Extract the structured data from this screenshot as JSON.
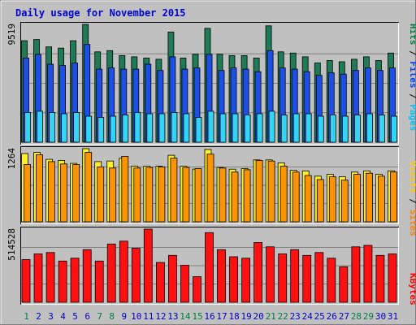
{
  "chart_data": {
    "type": "bar",
    "title": "Daily usage for November 2015",
    "categories": [
      "1",
      "2",
      "3",
      "4",
      "5",
      "6",
      "7",
      "8",
      "9",
      "10",
      "11",
      "12",
      "13",
      "14",
      "15",
      "16",
      "17",
      "18",
      "19",
      "20",
      "21",
      "22",
      "23",
      "24",
      "25",
      "26",
      "27",
      "28",
      "29",
      "30",
      "31"
    ],
    "weekend_days": [
      "1",
      "7",
      "8",
      "14",
      "15",
      "21",
      "22",
      "28",
      "29"
    ],
    "panels": [
      {
        "id": "hits-files-pages",
        "max_label": "9519",
        "ylim": [
          0,
          9519
        ],
        "series": [
          {
            "name": "Hits",
            "values": [
              8200,
              8300,
              7700,
              7600,
              8200,
              9519,
              7300,
              7400,
              7000,
              6900,
              6800,
              6700,
              8900,
              6800,
              7100,
              9200,
              7100,
              7000,
              7000,
              6800,
              9400,
              7300,
              7200,
              6900,
              6400,
              6600,
              6500,
              6700,
              6900,
              6600,
              7200
            ]
          },
          {
            "name": "Files",
            "values": [
              6800,
              7100,
              6300,
              6200,
              6400,
              7900,
              5900,
              6000,
              5900,
              5900,
              6300,
              5800,
              6900,
              5900,
              6000,
              7100,
              5800,
              6000,
              5900,
              5700,
              7400,
              6000,
              5900,
              5700,
              5400,
              5600,
              5500,
              5800,
              6000,
              5800,
              6000
            ]
          },
          {
            "name": "Pages",
            "values": [
              2400,
              2500,
              2400,
              2300,
              2400,
              2100,
              2000,
              2100,
              2200,
              2400,
              2300,
              2300,
              2400,
              2300,
              2000,
              2500,
              2300,
              2300,
              2200,
              2300,
              2500,
              2200,
              2300,
              2300,
              2100,
              2200,
              2100,
              2200,
              2300,
              2200,
              2100
            ]
          }
        ]
      },
      {
        "id": "visits-sites",
        "max_label": "1264",
        "ylim": [
          0,
          1264
        ],
        "series": [
          {
            "name": "Visits",
            "values": [
              1180,
              1200,
              1080,
              1060,
              1010,
              1264,
              1040,
              1050,
              1100,
              960,
              960,
              960,
              1150,
              960,
              910,
              1250,
              940,
              910,
              920,
              1070,
              1070,
              1020,
              890,
              880,
              790,
              820,
              780,
              860,
              880,
              820,
              880
            ]
          },
          {
            "name": "Sites",
            "values": [
              990,
              1160,
              1040,
              1000,
              990,
              1200,
              950,
              930,
              1130,
              930,
              940,
              950,
              1100,
              940,
              920,
              1170,
              930,
              860,
              900,
              1060,
              1050,
              960,
              860,
              800,
              730,
              780,
              720,
              820,
              840,
              790,
              860
            ]
          }
        ]
      },
      {
        "id": "kbytes",
        "max_label": "514528",
        "ylim": [
          0,
          514528
        ],
        "series": [
          {
            "name": "KBytes",
            "values": [
              300000,
              340000,
              350000,
              290000,
              310000,
              370000,
              290000,
              410000,
              430000,
              380000,
              514528,
              280000,
              330000,
              260000,
              180000,
              490000,
              370000,
              320000,
              310000,
              420000,
              390000,
              340000,
              370000,
              330000,
              350000,
              310000,
              250000,
              390000,
              400000,
              330000,
              340000
            ]
          }
        ]
      }
    ],
    "legends": [
      {
        "panel": "hits-files-pages",
        "parts": [
          {
            "text": "Pages",
            "color": "#00c0ff"
          },
          {
            "text": " / ",
            "color": "#000000"
          },
          {
            "text": "Files",
            "color": "#0040ff"
          },
          {
            "text": " / ",
            "color": "#000000"
          },
          {
            "text": "Hits",
            "color": "#008040"
          }
        ]
      },
      {
        "panel": "visits-sites",
        "parts": [
          {
            "text": "Sites",
            "color": "#ff8000"
          },
          {
            "text": " / ",
            "color": "#000000"
          },
          {
            "text": "Visits",
            "color": "#ffcc00"
          }
        ]
      },
      {
        "panel": "kbytes",
        "parts": [
          {
            "text": "KBytes",
            "color": "#ff0000"
          }
        ]
      }
    ],
    "colors": {
      "Hits": "#1f7a56",
      "Files": "#1d4fe6",
      "Pages": "#33d4f6",
      "Visits": "#ffee2a",
      "Sites": "#ff9400",
      "KBytes": "#ff1111",
      "title": "#0000cc",
      "weekday_label": "#0000c8",
      "weekend_label": "#008040",
      "background": "#c0c0c0"
    },
    "grid": true,
    "legend_placement": "right, vertical"
  }
}
